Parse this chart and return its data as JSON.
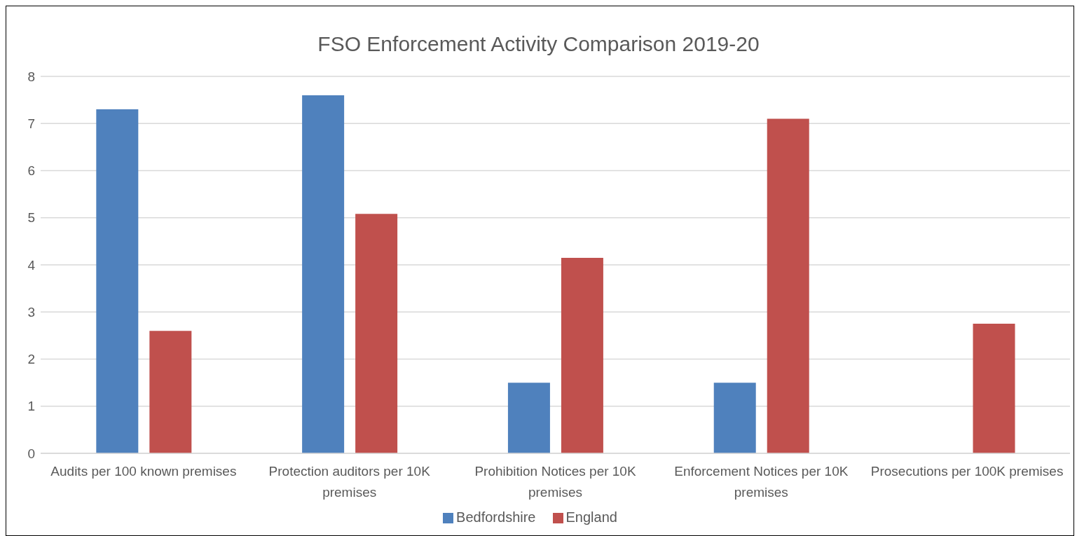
{
  "chart_data": {
    "type": "bar",
    "title": "FSO Enforcement Activity Comparison 2019-20",
    "categories": [
      "Audits per 100 known premises",
      "Protection auditors per 10K premises",
      "Prohibition Notices per 10K premises",
      "Enforcement Notices per 10K premises",
      "Prosecutions per 100K premises"
    ],
    "series": [
      {
        "name": "Bedfordshire",
        "color": "#4f81bd",
        "values": [
          7.3,
          7.6,
          1.5,
          1.5,
          0
        ]
      },
      {
        "name": "England",
        "color": "#c0504d",
        "values": [
          2.6,
          5.08,
          4.15,
          7.1,
          2.75
        ]
      }
    ],
    "ylim": [
      0,
      8
    ],
    "yticks": [
      0,
      1,
      2,
      3,
      4,
      5,
      6,
      7,
      8
    ],
    "grid": "y",
    "legend": "bottom"
  }
}
